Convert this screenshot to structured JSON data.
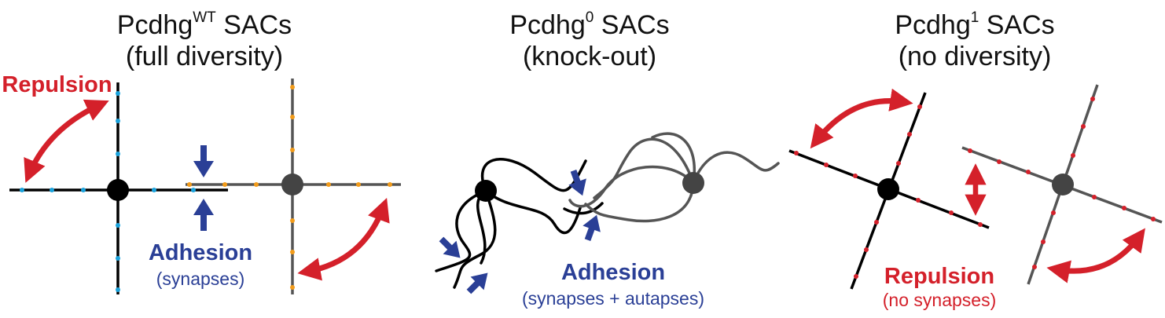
{
  "panels": [
    {
      "title_prefix": "Pcdhg",
      "title_sup": "WT",
      "title_suffix": " SACs",
      "subtitle": "(full diversity)",
      "label_repulsion": "Repulsion",
      "label_adhesion": "Adhesion",
      "label_adhesion_sub": "(synapses)"
    },
    {
      "title_prefix": "Pcdhg",
      "title_sup": "0",
      "title_suffix": " SACs",
      "subtitle": "(knock-out)",
      "label_adhesion": "Adhesion",
      "label_adhesion_sub": "(synapses + autapses)"
    },
    {
      "title_prefix": "Pcdhg",
      "title_sup": "1",
      "title_suffix": " SACs",
      "subtitle": "(no diversity)",
      "label_repulsion": "Repulsion",
      "label_repulsion_sub": "(no synapses)"
    }
  ],
  "colors": {
    "repulsion": "#d4202a",
    "adhesion": "#2a3f96",
    "cell_black": "#000000",
    "cell_gray": "#555555",
    "dots_cyan": "#1aa3dd",
    "dots_orange": "#f39c1a",
    "dots_red": "#d4202a"
  }
}
